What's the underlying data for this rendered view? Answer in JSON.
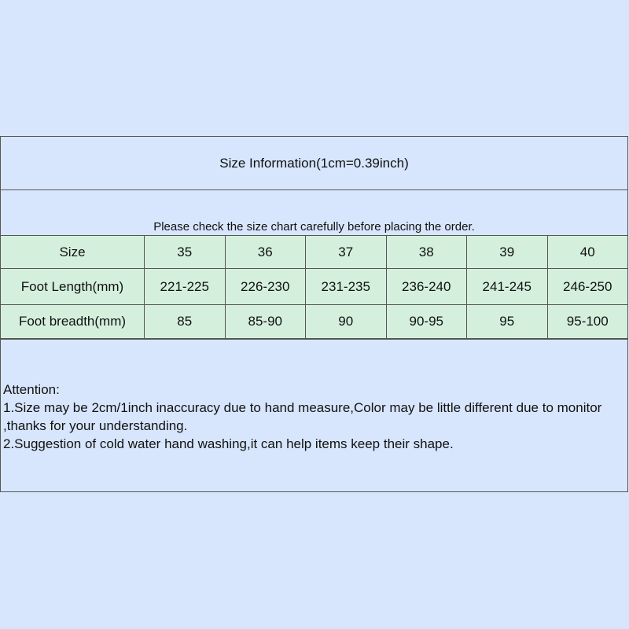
{
  "title": "Size Information(1cm=0.39inch)",
  "notice": "Please check the size chart carefully before placing the order.",
  "table": {
    "rows": [
      {
        "label": "Size",
        "values": [
          "35",
          "36",
          "37",
          "38",
          "39",
          "40"
        ]
      },
      {
        "label": "Foot Length(mm)",
        "values": [
          "221-225",
          "226-230",
          "231-235",
          "236-240",
          "241-245",
          "246-250"
        ]
      },
      {
        "label": "Foot breadth(mm)",
        "values": [
          "85",
          "85-90",
          "90",
          "90-95",
          "95",
          "95-100"
        ]
      }
    ]
  },
  "attention": {
    "heading": "Attention:",
    "lines": [
      "1.Size may be 2cm/1inch inaccuracy due to hand measure,Color may be little different due to monitor ,thanks for your understanding.",
      "2.Suggestion of cold water hand washing,it can help items keep their shape."
    ]
  }
}
